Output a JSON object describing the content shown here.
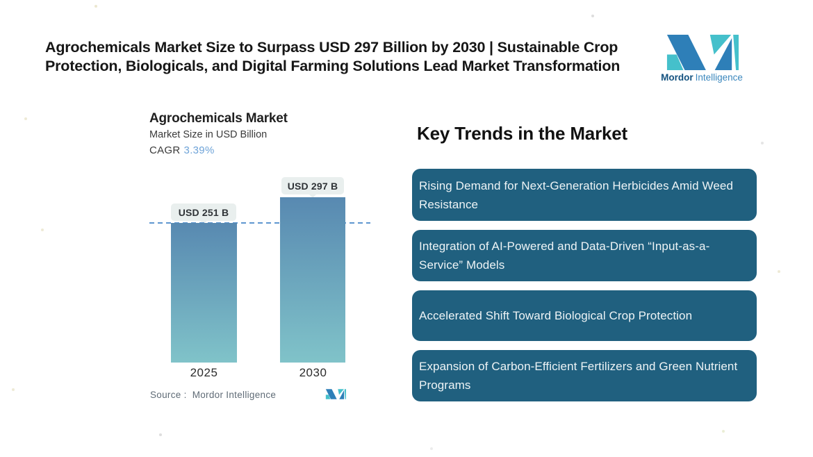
{
  "header": {
    "headline": "Agrochemicals Market Size to Surpass USD 297 Billion by 2030 | Sustainable Crop Protection, Biologicals, and Digital Farming Solutions Lead Market Transformation",
    "brand": {
      "name_bold": "Mordor",
      "name_light": "Intelligence"
    }
  },
  "chart": {
    "title": "Agrochemicals Market",
    "subtitle": "Market Size in USD Billion",
    "cagr_label": "CAGR",
    "cagr_value": "3.39%",
    "source_label": "Source :",
    "source_value": "Mordor Intelligence"
  },
  "chart_data": {
    "type": "bar",
    "title": "Agrochemicals Market",
    "ylabel": "Market Size in USD Billion",
    "categories": [
      "2025",
      "2030"
    ],
    "values": [
      251,
      297
    ],
    "value_labels": [
      "USD 251 B",
      "USD 297 B"
    ],
    "cagr_pct": 3.39,
    "reference_line": 251,
    "ylim": [
      0,
      300
    ],
    "grid": false,
    "legend": "none"
  },
  "trends": {
    "heading": "Key Trends in the Market",
    "items": [
      "Rising Demand for Next-Generation Herbicides Amid Weed Resistance",
      "Integration of AI-Powered and Data-Driven “Input-as-a-Service” Models",
      "Accelerated Shift Toward Biological Crop Protection",
      "Expansion of Carbon-Efficient Fertilizers and Green Nutrient Programs"
    ]
  },
  "colors": {
    "headline_text": "#161616",
    "bar_top": "#5889b1",
    "bar_bottom": "#80c3c9",
    "dashed_line": "#5e96cf",
    "pill_bg": "#e9efee",
    "pill_text": "#2f3337",
    "trend_box": "#20607f",
    "trend_text": "#eef4f6",
    "cagr_value": "#6ea3d8",
    "logo_blue": "#2e7fb8",
    "logo_teal": "#45c0cb",
    "brand_bold_text": "#13527f",
    "brand_light_text": "#3a87bd",
    "source_text": "#5f6b76"
  }
}
